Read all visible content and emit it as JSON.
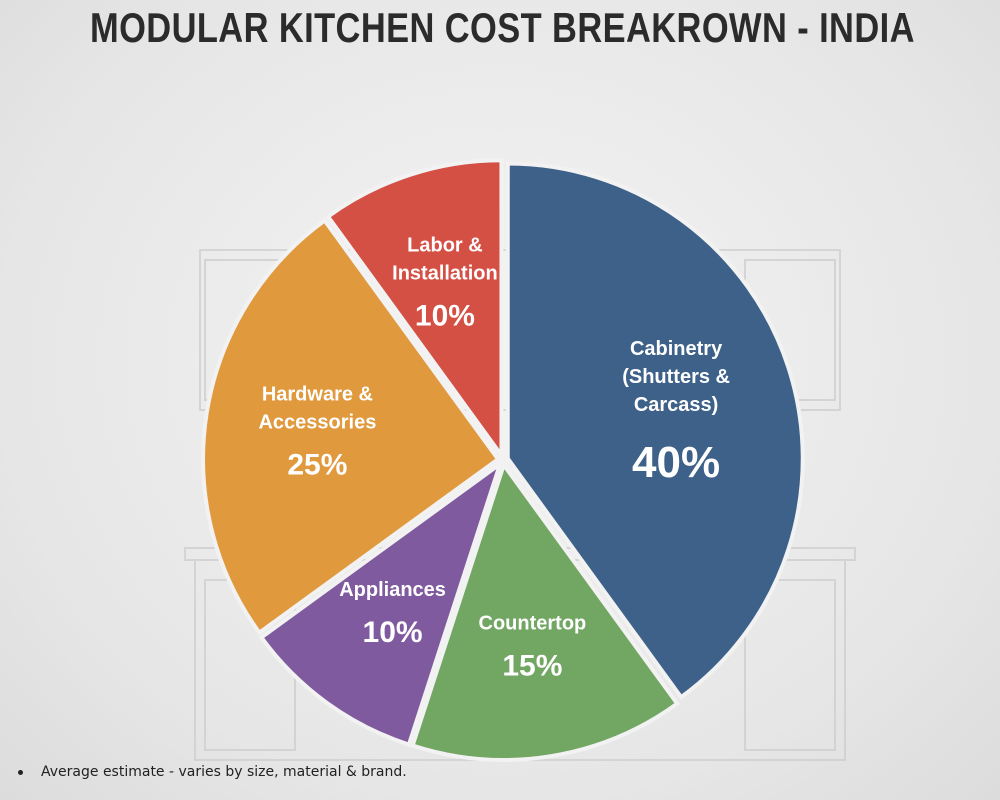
{
  "chart_data": {
    "type": "pie",
    "title": "MODULAR KITCHEN COST BREAKROWN - INDIA",
    "slices": [
      {
        "label": [
          "Cabinetry",
          "(Shutters &",
          "Carcass)"
        ],
        "value": 40,
        "value_label": "40%",
        "color": "#3d6189"
      },
      {
        "label": [
          "Countertop"
        ],
        "value": 15,
        "value_label": "15%",
        "color": "#72a663"
      },
      {
        "label": [
          "Appliances"
        ],
        "value": 10,
        "value_label": "10%",
        "color": "#7f5a9e"
      },
      {
        "label": [
          "Hardware &",
          "Accessories"
        ],
        "value": 25,
        "value_label": "25%",
        "color": "#e0993c"
      },
      {
        "label": [
          "Labor &",
          "Installation"
        ],
        "value": 10,
        "value_label": "10%",
        "color": "#d44f44"
      }
    ],
    "start": "top",
    "direction": "clockwise",
    "legend": "none"
  },
  "footnote": "Average estimate - varies by size, material & brand."
}
